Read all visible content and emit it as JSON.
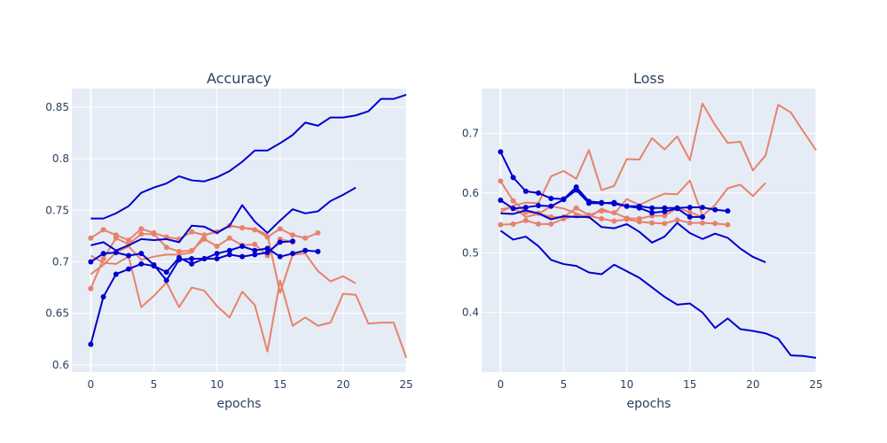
{
  "chart_data": [
    {
      "type": "line",
      "title": "Accuracy",
      "xlabel": "epochs",
      "ylabel": "",
      "xlim": [
        -1.5,
        25
      ],
      "ylim": [
        0.593,
        0.868
      ],
      "xticks": [
        0,
        5,
        10,
        15,
        20,
        25
      ],
      "xtick_labels": [
        "0",
        "5",
        "10",
        "15",
        "20",
        "25"
      ],
      "yticks": [
        0.6,
        0.65,
        0.7,
        0.75,
        0.8,
        0.85
      ],
      "ytick_labels": [
        "0.6",
        "0.65",
        "0.7",
        "0.75",
        "0.8",
        "0.85"
      ],
      "grid": true,
      "series": [
        {
          "color": "#e8826a",
          "markers": false,
          "x": [
            0,
            1,
            2,
            3,
            4,
            5,
            6,
            7,
            8,
            9,
            10,
            11,
            12,
            13,
            14,
            15,
            16,
            17,
            18,
            19,
            20,
            21,
            22,
            23,
            24,
            25
          ],
          "y": [
            0.706,
            0.699,
            0.698,
            0.705,
            0.656,
            0.667,
            0.68,
            0.656,
            0.675,
            0.672,
            0.657,
            0.646,
            0.671,
            0.658,
            0.613,
            0.682,
            0.638,
            0.646,
            0.638,
            0.641,
            0.669,
            0.668,
            0.64,
            0.641,
            0.641,
            0.607
          ]
        },
        {
          "color": "#e8826a",
          "markers": false,
          "x": [
            0,
            1,
            2,
            3,
            4,
            5,
            6,
            7,
            8,
            9,
            10,
            11,
            12,
            13,
            14,
            15,
            16,
            17,
            18,
            19,
            20,
            21
          ],
          "y": [
            0.688,
            0.697,
            0.709,
            0.715,
            0.702,
            0.705,
            0.707,
            0.707,
            0.709,
            0.726,
            0.729,
            0.735,
            0.733,
            0.732,
            0.726,
            0.67,
            0.707,
            0.708,
            0.691,
            0.681,
            0.686,
            0.679
          ]
        },
        {
          "color": "#e8826a",
          "markers": true,
          "x": [
            0,
            1,
            2,
            3,
            4,
            5,
            6,
            7,
            8,
            9,
            10,
            11,
            12,
            13,
            14,
            15,
            16,
            17,
            18
          ],
          "y": [
            0.723,
            0.731,
            0.726,
            0.721,
            0.732,
            0.728,
            0.724,
            0.722,
            0.729,
            0.726,
            0.729,
            0.735,
            0.733,
            0.731,
            0.724,
            0.732,
            0.726,
            0.723,
            0.728
          ]
        },
        {
          "color": "#e8826a",
          "markers": true,
          "x": [
            0,
            1,
            2,
            3,
            4,
            5,
            6,
            7,
            8,
            9,
            10,
            11,
            12,
            13,
            14,
            15,
            16
          ],
          "y": [
            0.674,
            0.703,
            0.723,
            0.717,
            0.727,
            0.727,
            0.714,
            0.71,
            0.711,
            0.722,
            0.715,
            0.723,
            0.716,
            0.717,
            0.706,
            0.722,
            0.719
          ]
        },
        {
          "color": "#0000cd",
          "markers": false,
          "x": [
            0,
            1,
            2,
            3,
            4,
            5,
            6,
            7,
            8,
            9,
            10,
            11,
            12,
            13,
            14,
            15,
            16,
            17,
            18,
            19,
            20,
            21,
            22,
            23,
            24,
            25
          ],
          "y": [
            0.742,
            0.742,
            0.747,
            0.754,
            0.767,
            0.772,
            0.776,
            0.783,
            0.779,
            0.778,
            0.782,
            0.788,
            0.797,
            0.808,
            0.808,
            0.815,
            0.823,
            0.835,
            0.832,
            0.84,
            0.84,
            0.842,
            0.846,
            0.858,
            0.858,
            0.862
          ]
        },
        {
          "color": "#0000cd",
          "markers": false,
          "x": [
            0,
            1,
            2,
            3,
            4,
            5,
            6,
            7,
            8,
            9,
            10,
            11,
            12,
            13,
            14,
            15,
            16,
            17,
            18,
            19,
            20,
            21
          ],
          "y": [
            0.716,
            0.719,
            0.711,
            0.716,
            0.722,
            0.721,
            0.722,
            0.719,
            0.735,
            0.734,
            0.728,
            0.735,
            0.755,
            0.739,
            0.728,
            0.74,
            0.751,
            0.747,
            0.749,
            0.759,
            0.765,
            0.772
          ]
        },
        {
          "color": "#0000cd",
          "markers": true,
          "x": [
            0,
            1,
            2,
            3,
            4,
            5,
            6,
            7,
            8,
            9,
            10,
            11,
            12,
            13,
            14,
            15,
            16,
            17,
            18
          ],
          "y": [
            0.7,
            0.708,
            0.709,
            0.706,
            0.708,
            0.697,
            0.682,
            0.702,
            0.703,
            0.703,
            0.708,
            0.711,
            0.715,
            0.711,
            0.713,
            0.705,
            0.708,
            0.711,
            0.71
          ]
        },
        {
          "color": "#0000cd",
          "markers": true,
          "x": [
            0,
            1,
            2,
            3,
            4,
            5,
            6,
            7,
            8,
            9,
            10,
            11,
            12,
            13,
            14,
            15,
            16
          ],
          "y": [
            0.62,
            0.666,
            0.688,
            0.693,
            0.698,
            0.696,
            0.69,
            0.704,
            0.698,
            0.703,
            0.703,
            0.707,
            0.705,
            0.707,
            0.709,
            0.719,
            0.72
          ]
        }
      ]
    },
    {
      "type": "line",
      "title": "Loss",
      "xlabel": "epochs",
      "ylabel": "",
      "xlim": [
        -1.5,
        25
      ],
      "ylim": [
        0.3,
        0.775
      ],
      "xticks": [
        0,
        5,
        10,
        15,
        20,
        25
      ],
      "xtick_labels": [
        "0",
        "5",
        "10",
        "15",
        "20",
        "25"
      ],
      "yticks": [
        0.4,
        0.5,
        0.6,
        0.7
      ],
      "ytick_labels": [
        "0.4",
        "0.5",
        "0.6",
        "0.7"
      ],
      "grid": true,
      "series": [
        {
          "color": "#e8826a",
          "markers": false,
          "x": [
            0,
            1,
            2,
            3,
            4,
            5,
            6,
            7,
            8,
            9,
            10,
            11,
            12,
            13,
            14,
            15,
            16,
            17,
            18,
            19,
            20,
            21,
            22,
            23,
            24,
            25
          ],
          "y": [
            0.568,
            0.579,
            0.584,
            0.583,
            0.628,
            0.637,
            0.624,
            0.672,
            0.605,
            0.612,
            0.657,
            0.656,
            0.692,
            0.673,
            0.695,
            0.655,
            0.75,
            0.714,
            0.684,
            0.686,
            0.638,
            0.663,
            0.748,
            0.735,
            0.703,
            0.672
          ]
        },
        {
          "color": "#e8826a",
          "markers": false,
          "x": [
            0,
            1,
            2,
            3,
            4,
            5,
            6,
            7,
            8,
            9,
            10,
            11,
            12,
            13,
            14,
            15,
            16,
            17,
            18,
            19,
            20,
            21
          ],
          "y": [
            0.573,
            0.576,
            0.56,
            0.565,
            0.578,
            0.574,
            0.566,
            0.558,
            0.574,
            0.565,
            0.59,
            0.58,
            0.59,
            0.599,
            0.598,
            0.621,
            0.562,
            0.58,
            0.608,
            0.614,
            0.595,
            0.617
          ]
        },
        {
          "color": "#e8826a",
          "markers": true,
          "x": [
            0,
            1,
            2,
            3,
            4,
            5,
            6,
            7,
            8,
            9,
            10,
            11,
            12,
            13,
            14,
            15,
            16,
            17,
            18
          ],
          "y": [
            0.547,
            0.548,
            0.554,
            0.548,
            0.548,
            0.557,
            0.562,
            0.562,
            0.557,
            0.553,
            0.556,
            0.552,
            0.55,
            0.549,
            0.555,
            0.55,
            0.55,
            0.549,
            0.547
          ]
        },
        {
          "color": "#e8826a",
          "markers": true,
          "x": [
            0,
            1,
            2,
            3,
            4,
            5,
            6,
            7,
            8,
            9,
            10,
            11,
            12,
            13,
            14,
            15,
            16
          ],
          "y": [
            0.62,
            0.587,
            0.568,
            0.566,
            0.56,
            0.56,
            0.575,
            0.563,
            0.57,
            0.567,
            0.558,
            0.557,
            0.562,
            0.562,
            0.575,
            0.568,
            0.56
          ]
        },
        {
          "color": "#0000cd",
          "markers": false,
          "x": [
            0,
            1,
            2,
            3,
            4,
            5,
            6,
            7,
            8,
            9,
            10,
            11,
            12,
            13,
            14,
            15,
            16,
            17,
            18,
            19,
            20,
            21,
            22,
            23,
            24,
            25
          ],
          "y": [
            0.537,
            0.522,
            0.527,
            0.511,
            0.488,
            0.481,
            0.478,
            0.467,
            0.464,
            0.48,
            0.469,
            0.458,
            0.442,
            0.426,
            0.413,
            0.415,
            0.4,
            0.374,
            0.39,
            0.372,
            0.369,
            0.365,
            0.356,
            0.328,
            0.327,
            0.324
          ]
        },
        {
          "color": "#0000cd",
          "markers": false,
          "x": [
            0,
            1,
            2,
            3,
            4,
            5,
            6,
            7,
            8,
            9,
            10,
            11,
            12,
            13,
            14,
            15,
            16,
            17,
            18,
            19,
            20,
            21
          ],
          "y": [
            0.566,
            0.565,
            0.571,
            0.566,
            0.556,
            0.561,
            0.56,
            0.56,
            0.543,
            0.541,
            0.548,
            0.535,
            0.517,
            0.527,
            0.55,
            0.533,
            0.523,
            0.532,
            0.525,
            0.507,
            0.493,
            0.484
          ]
        },
        {
          "color": "#0000cd",
          "markers": true,
          "x": [
            0,
            1,
            2,
            3,
            4,
            5,
            6,
            7,
            8,
            9,
            10,
            11,
            12,
            13,
            14,
            15,
            16,
            17,
            18
          ],
          "y": [
            0.588,
            0.574,
            0.576,
            0.579,
            0.578,
            0.589,
            0.605,
            0.583,
            0.583,
            0.584,
            0.578,
            0.578,
            0.575,
            0.575,
            0.575,
            0.576,
            0.576,
            0.572,
            0.57
          ]
        },
        {
          "color": "#0000cd",
          "markers": true,
          "x": [
            0,
            1,
            2,
            3,
            4,
            5,
            6,
            7,
            8,
            9,
            10,
            11,
            12,
            13,
            14,
            15,
            16
          ],
          "y": [
            0.669,
            0.626,
            0.603,
            0.6,
            0.591,
            0.59,
            0.61,
            0.586,
            0.584,
            0.582,
            0.578,
            0.575,
            0.567,
            0.569,
            0.574,
            0.56,
            0.56
          ]
        }
      ]
    }
  ]
}
